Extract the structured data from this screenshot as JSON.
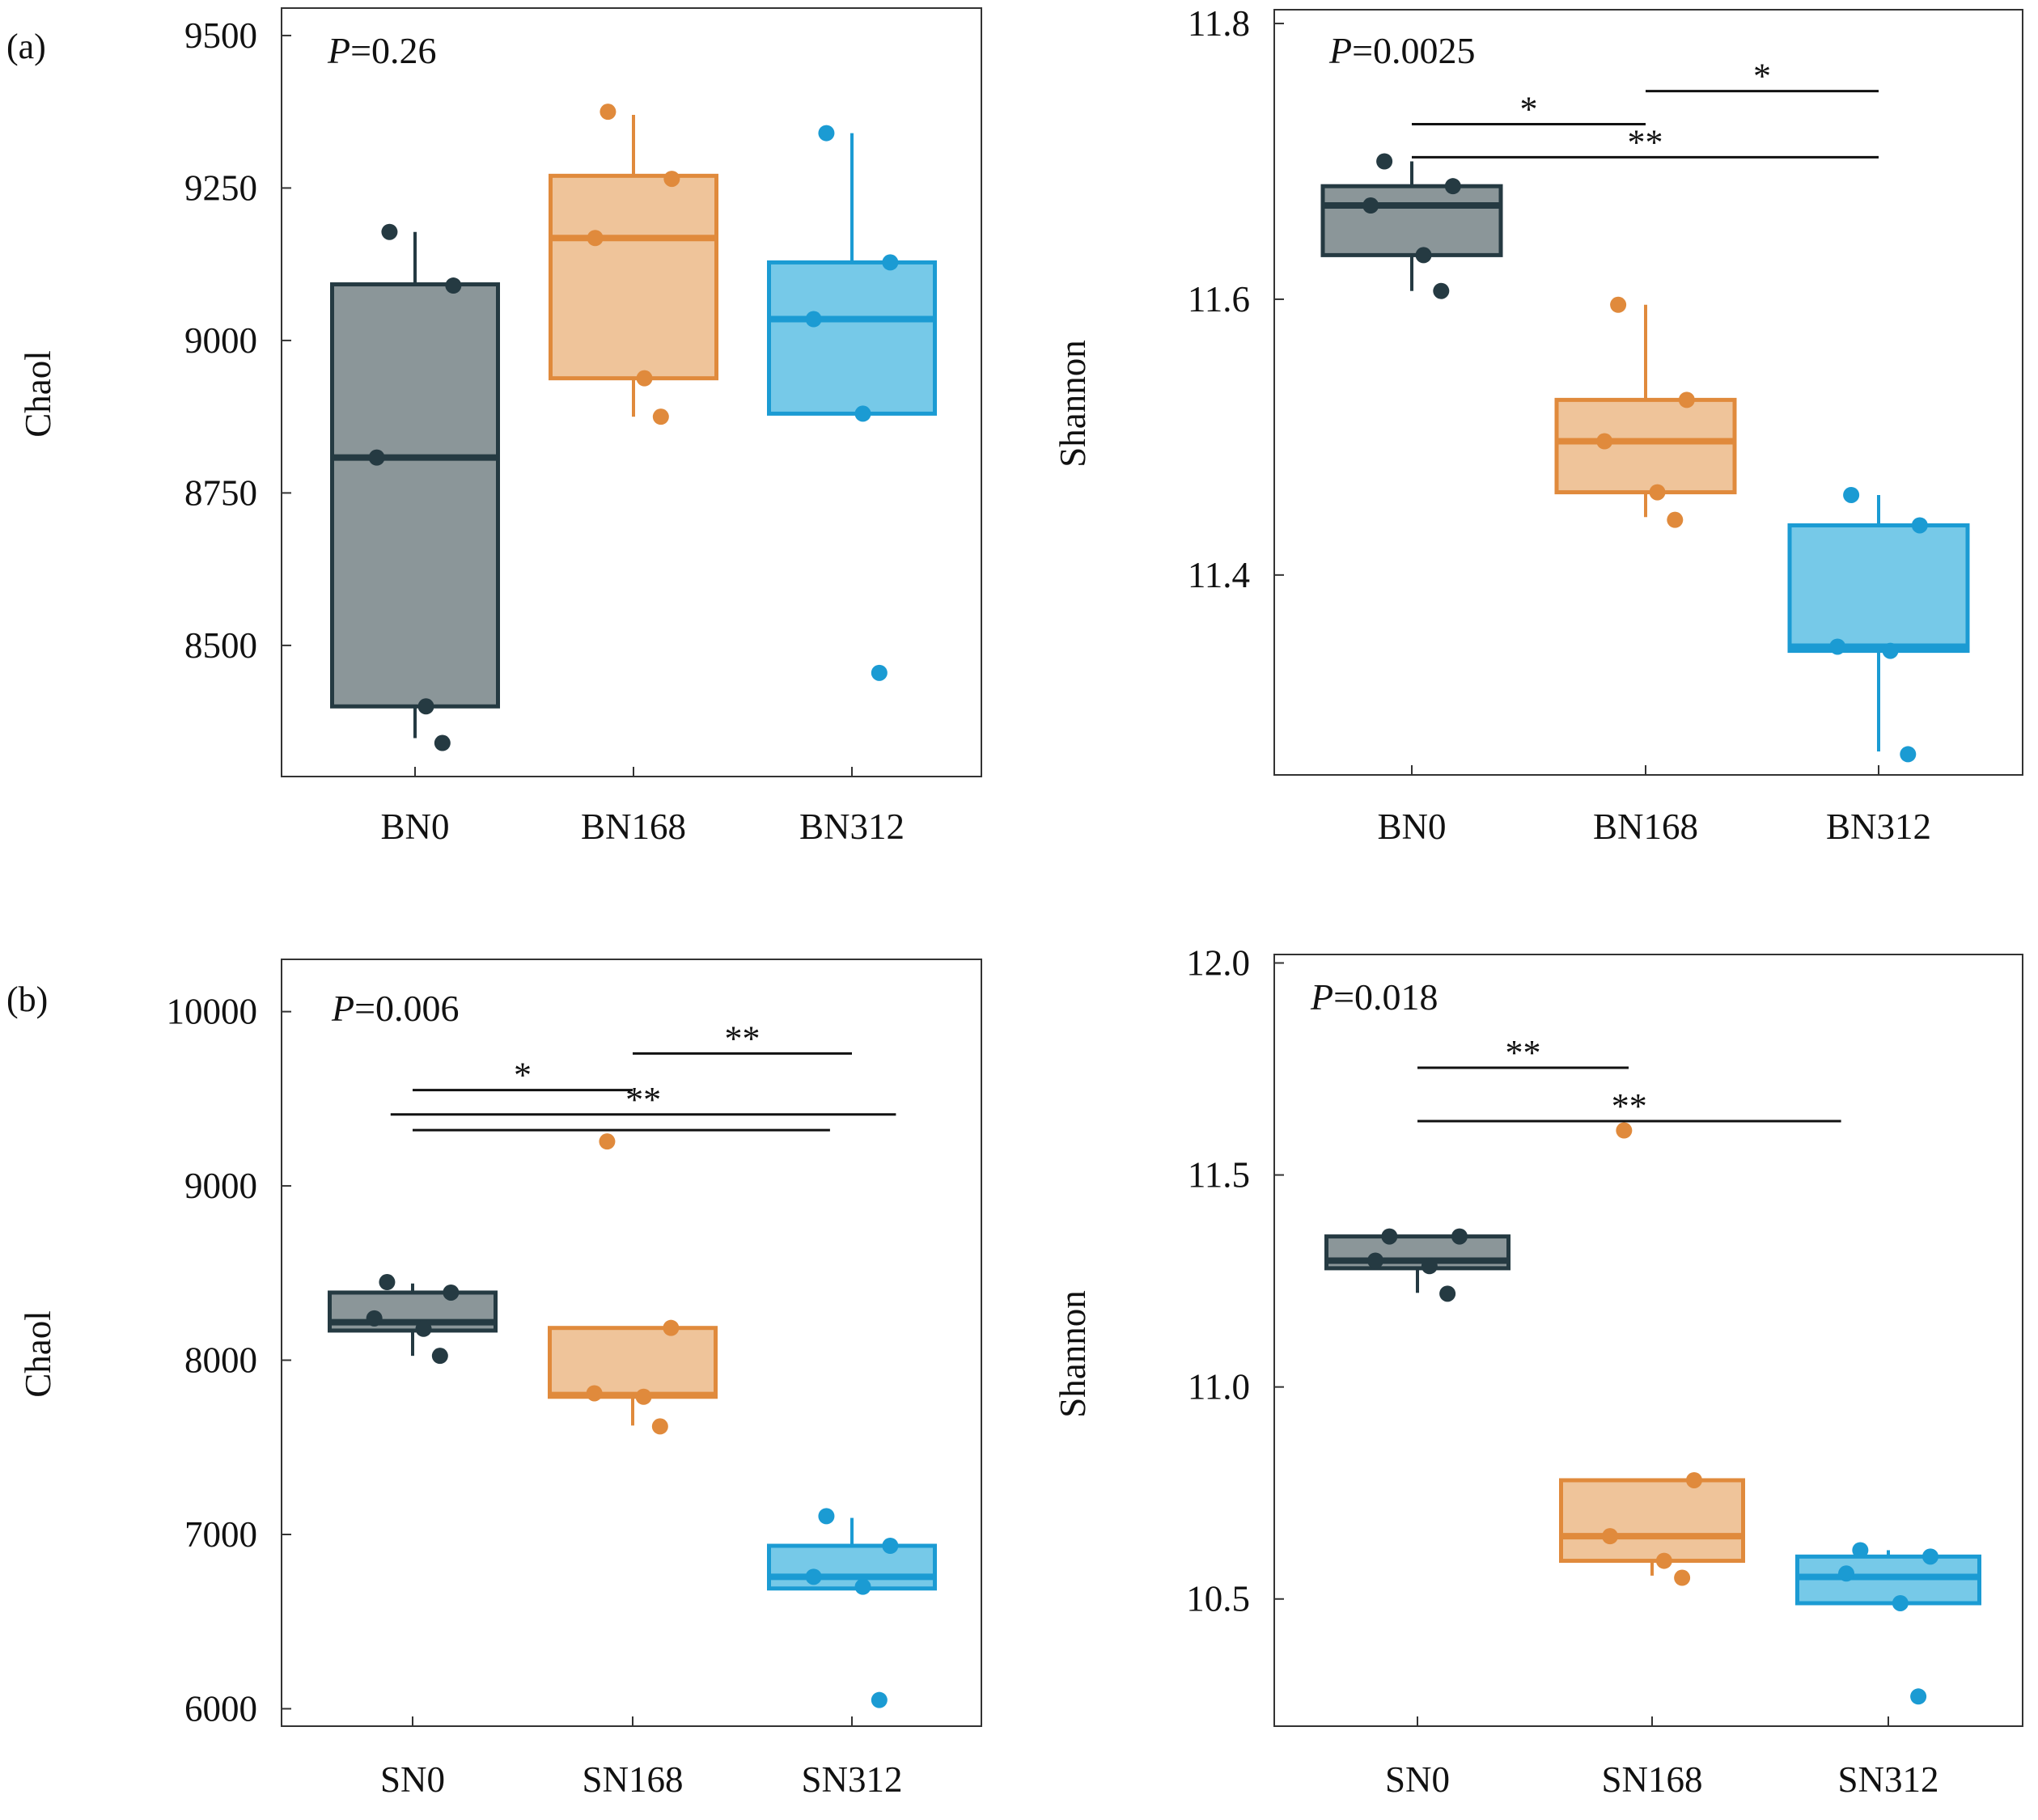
{
  "panels": [
    {
      "label": "(a)"
    },
    {
      "label": ""
    },
    {
      "label": "(b)"
    },
    {
      "label": ""
    }
  ],
  "chart_data": [
    {
      "type": "box",
      "xlabel": "",
      "ylabel": "Chaol",
      "p_prefix": "P",
      "p_value": "=0.26",
      "categories": [
        "BN0",
        "BN168",
        "BN312"
      ],
      "yticks": [
        8500,
        8750,
        9000,
        9250,
        9500
      ],
      "tick_labels": [
        "8500",
        "8750",
        "9000",
        "9250",
        "9500"
      ],
      "ylim": [
        8285,
        9545
      ],
      "grid": false,
      "boxes": [
        {
          "q1": 8400,
          "median": 8808,
          "q3": 9092,
          "whisker_low": 8348,
          "whisker_high": 9178
        },
        {
          "q1": 8938,
          "median": 9168,
          "q3": 9270,
          "whisker_low": 8875,
          "whisker_high": 9370
        },
        {
          "q1": 8880,
          "median": 9035,
          "q3": 9128,
          "whisker_low": 8880,
          "whisker_high": 9340
        }
      ],
      "points": [
        [
          9178,
          9090,
          8808,
          8400,
          8340
        ],
        [
          9375,
          9265,
          9168,
          8938,
          8875
        ],
        [
          9340,
          9128,
          9035,
          8880,
          8455
        ]
      ],
      "significance": []
    },
    {
      "type": "box",
      "xlabel": "",
      "ylabel": "Shannon",
      "p_prefix": "P",
      "p_value": "=0.0025",
      "categories": [
        "BN0",
        "BN168",
        "BN312"
      ],
      "yticks": [
        11.4,
        11.6,
        11.8
      ],
      "tick_labels": [
        "11.4",
        "11.6",
        "11.8"
      ],
      "ylim": [
        11.255,
        11.81
      ],
      "grid": false,
      "boxes": [
        {
          "q1": 11.632,
          "median": 11.668,
          "q3": 11.682,
          "whisker_low": 11.606,
          "whisker_high": 11.7
        },
        {
          "q1": 11.46,
          "median": 11.497,
          "q3": 11.527,
          "whisker_low": 11.442,
          "whisker_high": 11.596
        },
        {
          "q1": 11.345,
          "median": 11.348,
          "q3": 11.436,
          "whisker_low": 11.272,
          "whisker_high": 11.458
        }
      ],
      "points": [
        [
          11.7,
          11.682,
          11.668,
          11.632,
          11.606
        ],
        [
          11.596,
          11.527,
          11.497,
          11.46,
          11.44
        ],
        [
          11.458,
          11.436,
          11.348,
          11.345,
          11.27
        ]
      ],
      "significance": [
        {
          "from": 1,
          "to": 2,
          "y": 11.751,
          "label": "*"
        },
        {
          "from": 0,
          "to": 1,
          "y": 11.727,
          "label": "*"
        },
        {
          "from": 0,
          "to": 2,
          "y": 11.703,
          "label": "**"
        }
      ]
    },
    {
      "type": "box",
      "xlabel": "",
      "ylabel": "Chaol",
      "p_prefix": "P",
      "p_value": "=0.006",
      "categories": [
        "SN0",
        "SN168",
        "SN312"
      ],
      "yticks": [
        6000,
        7000,
        8000,
        9000,
        10000
      ],
      "tick_labels": [
        "6000",
        "7000",
        "8000",
        "9000",
        "10000"
      ],
      "ylim": [
        5900,
        10300
      ],
      "grid": false,
      "boxes": [
        {
          "q1": 8170,
          "median": 8218,
          "q3": 8388,
          "whisker_low": 8025,
          "whisker_high": 8440
        },
        {
          "q1": 7790,
          "median": 7800,
          "q3": 8185,
          "whisker_low": 7625,
          "whisker_high": 8185
        },
        {
          "q1": 6690,
          "median": 6757,
          "q3": 6935,
          "whisker_low": 6690,
          "whisker_high": 7095
        }
      ],
      "points": [
        [
          8448,
          8388,
          8240,
          8180,
          8025
        ],
        [
          9255,
          8185,
          7810,
          7790,
          7620
        ],
        [
          7105,
          6935,
          6757,
          6700,
          6050
        ]
      ],
      "significance": [
        {
          "from": 1,
          "to": 2,
          "y": 9760,
          "label": "**"
        },
        {
          "from": 0,
          "to": 1,
          "y": 9550,
          "label": "*"
        },
        {
          "from": -0.1,
          "to": 2.2,
          "y": 9410,
          "label": "**"
        },
        {
          "from": 0,
          "to": 1.9,
          "y": 9320,
          "label": ""
        }
      ]
    },
    {
      "type": "box",
      "xlabel": "",
      "ylabel": "Shannon",
      "p_prefix": "P",
      "p_value": "=0.018",
      "categories": [
        "SN0",
        "SN168",
        "SN312"
      ],
      "yticks": [
        10.5,
        11.0,
        11.5,
        12.0
      ],
      "tick_labels": [
        "10.5",
        "11.0",
        "11.5",
        "12.0"
      ],
      "ylim": [
        10.2,
        12.02
      ],
      "grid": false,
      "boxes": [
        {
          "q1": 11.28,
          "median": 11.298,
          "q3": 11.355,
          "whisker_low": 11.222,
          "whisker_high": 11.355
        },
        {
          "q1": 10.59,
          "median": 10.648,
          "q3": 10.78,
          "whisker_low": 10.555,
          "whisker_high": 10.78
        },
        {
          "q1": 10.49,
          "median": 10.552,
          "q3": 10.6,
          "whisker_low": 10.49,
          "whisker_high": 10.615
        }
      ],
      "points": [
        [
          11.355,
          11.355,
          11.298,
          11.285,
          11.22
        ],
        [
          11.605,
          10.78,
          10.648,
          10.59,
          10.55
        ],
        [
          10.615,
          10.6,
          10.56,
          10.49,
          10.27
        ]
      ],
      "significance": [
        {
          "from": 0,
          "to": 0.9,
          "y": 11.753,
          "label": "**"
        },
        {
          "from": 0,
          "to": 1.8,
          "y": 11.627,
          "label": "**"
        }
      ]
    }
  ],
  "colors": {
    "groups": [
      "#8b9699",
      "#efc49a",
      "#76c9e8"
    ],
    "group_edges": [
      "#253a42",
      "#e08a3c",
      "#1b9bd3"
    ],
    "points": [
      "#253a42",
      "#e08a3c",
      "#1b9bd3"
    ],
    "text": "#111111",
    "frame": "#333333"
  }
}
